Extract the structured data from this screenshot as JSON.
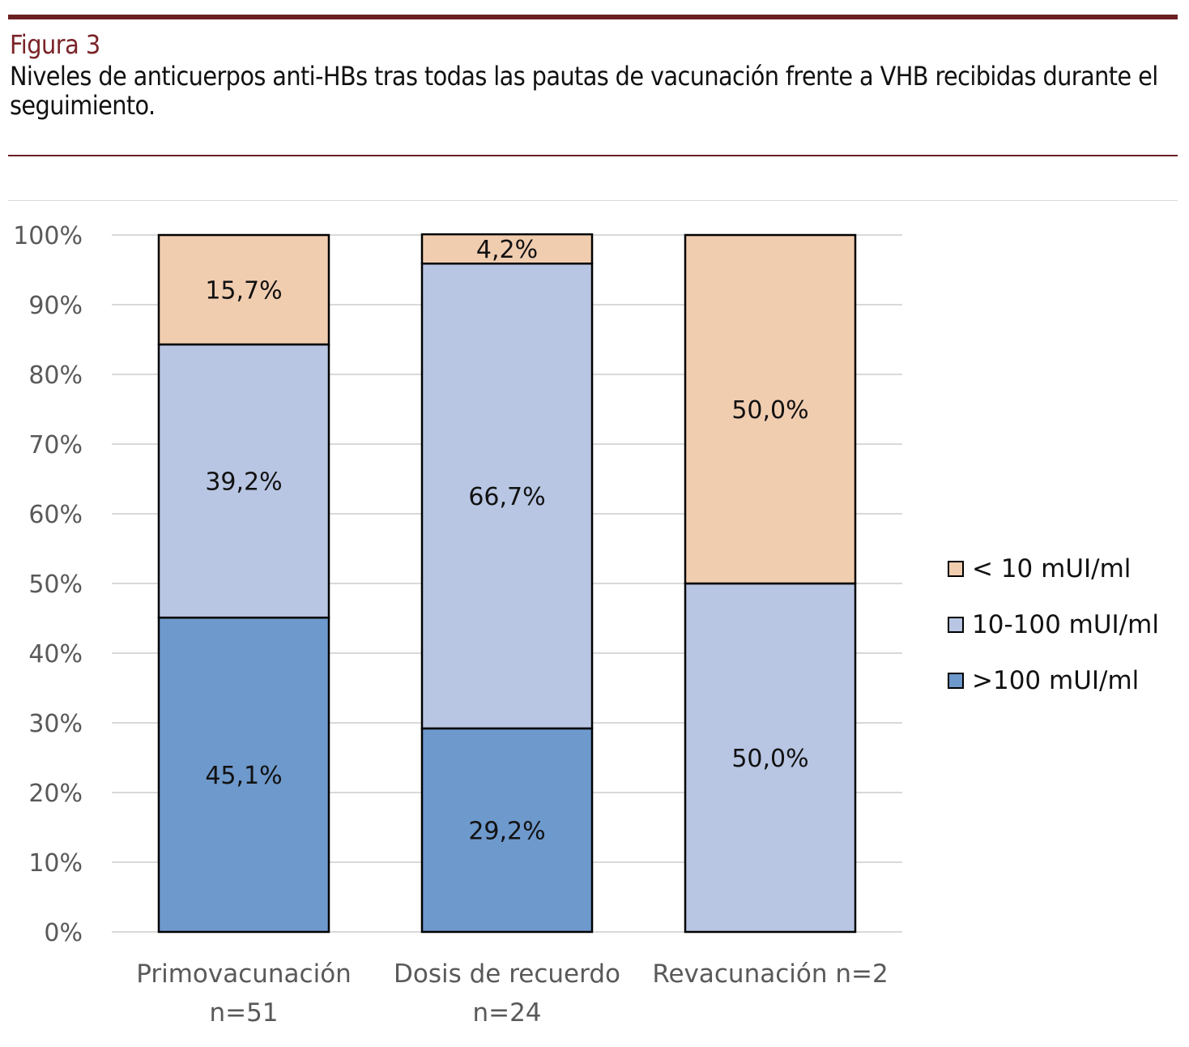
{
  "header": {
    "figure_label": "Figura 3",
    "caption": "Niveles de anticuerpos anti-HBs tras todas las pautas de vacunación frente a VHB recibidas durante el seguimiento."
  },
  "colors": {
    "rule": "#6b1f23",
    "figure_label": "#7a2328",
    "series_low": "#f1cdb0",
    "series_mid": "#b8c6e3",
    "series_high": "#6e99cc",
    "gridline": "#d9d9d9",
    "tick_text": "#595959"
  },
  "chart_data": {
    "type": "bar",
    "stacked": true,
    "percent": true,
    "categories": [
      [
        "Primovacunación",
        "n=51"
      ],
      [
        "Dosis de recuerdo",
        "n=24"
      ],
      [
        "Revacunación n=2"
      ]
    ],
    "series": [
      {
        "name": ">100 mUI/ml",
        "color": "#6e99cc",
        "values": [
          45.1,
          29.2,
          0
        ],
        "labels": [
          "45,1%",
          "29,2%",
          ""
        ]
      },
      {
        "name": "10-100 mUI/ml",
        "color": "#b8c6e3",
        "values": [
          39.2,
          66.7,
          50.0
        ],
        "labels": [
          "39,2%",
          "66,7%",
          "50,0%"
        ]
      },
      {
        "name": "< 10 mUI/ml",
        "color": "#f1cdb0",
        "values": [
          15.7,
          4.2,
          50.0
        ],
        "labels": [
          "15,7%",
          "4,2%",
          "50,0%"
        ]
      }
    ],
    "ylim": [
      0,
      100
    ],
    "yticks": [
      "0%",
      "10%",
      "20%",
      "30%",
      "40%",
      "50%",
      "60%",
      "70%",
      "80%",
      "90%",
      "100%"
    ],
    "grid": true,
    "legend_position": "right"
  }
}
